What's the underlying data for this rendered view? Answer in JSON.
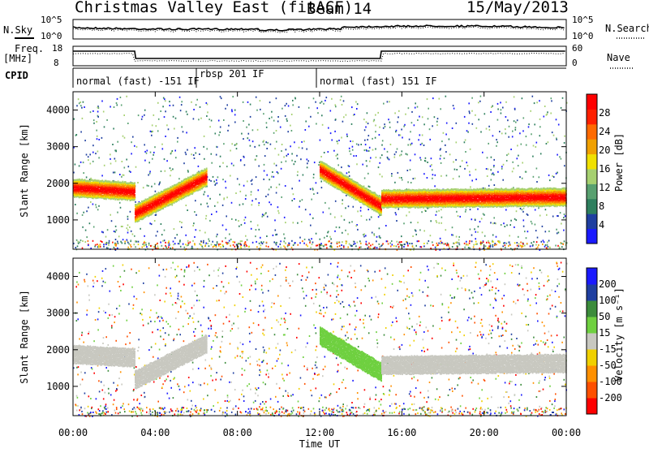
{
  "header": {
    "title": "Christmas Valley East (fitACF)",
    "beam": "Beam 14",
    "date": "15/May/2013"
  },
  "sky_panel": {
    "left_label": "N.Sky",
    "right_label": "N.Search",
    "left_ticks": [
      "10^5",
      "10^0"
    ],
    "right_ticks": [
      "10^5",
      "10^0"
    ]
  },
  "freq_panel": {
    "left_label_1": "Freq.",
    "left_label_2": "[MHz]",
    "left_ticks": [
      "18",
      "8"
    ],
    "right_label": "Nave",
    "right_ticks": [
      "60",
      "0"
    ]
  },
  "cpid": {
    "label": "CPID",
    "modes": [
      {
        "text": "normal (fast) -151 IF",
        "start_hour": 0
      },
      {
        "text": "rbsp 201 IF",
        "start_hour": 6
      },
      {
        "text": "normal (fast) 151 IF",
        "start_hour": 12
      }
    ]
  },
  "power_panel": {
    "ylabel": "Slant Range [km]",
    "yticks": [
      "1000",
      "2000",
      "3000",
      "4000"
    ],
    "colorbar_label": "Power [dB]",
    "colorbar_ticks": [
      "4",
      "8",
      "12",
      "16",
      "20",
      "24",
      "28"
    ],
    "colors": [
      "#1a1aff",
      "#1f3fa0",
      "#2e7f5e",
      "#58a070",
      "#a6d070",
      "#f0e000",
      "#f0a000",
      "#ff6a00",
      "#ff2000",
      "#ff0000"
    ]
  },
  "velocity_panel": {
    "ylabel": "Slant Range [km]",
    "yticks": [
      "1000",
      "2000",
      "3000",
      "4000"
    ],
    "colorbar_label": "Velocity [m s⁻¹]",
    "colorbar_ticks": [
      "200",
      "100",
      "50",
      "15",
      "-15",
      "-50",
      "-100",
      "-200"
    ],
    "colors": [
      "#1a1aff",
      "#1f3fa0",
      "#3c8c3c",
      "#6fd040",
      "#c8c8c0",
      "#f0d000",
      "#ff9000",
      "#ff5000",
      "#ff0000"
    ]
  },
  "x_axis": {
    "label": "Time UT",
    "ticks": [
      "00:00",
      "04:00",
      "08:00",
      "12:00",
      "16:00",
      "20:00",
      "00:00"
    ]
  },
  "chart_data": [
    {
      "type": "heatmap",
      "title": "Christmas Valley East (fitACF) Beam 14 15/May/2013",
      "xlabel": "Time UT",
      "ylabel": "Slant Range [km]",
      "xlim": [
        0,
        24
      ],
      "ylim": [
        200,
        4500
      ],
      "quantity": "Power [dB]",
      "colorbar_range": [
        0,
        32
      ],
      "features": [
        {
          "start": 0,
          "end": 3,
          "range_start": 1900,
          "range_end": 1800,
          "power": 28,
          "note": "strong band"
        },
        {
          "start": 3,
          "end": 6.5,
          "range_start": 1200,
          "range_end": 2200,
          "power": 30,
          "note": "rising band"
        },
        {
          "start": 12,
          "end": 15,
          "range_start": 2400,
          "range_end": 1400,
          "power": 26,
          "note": "descending band"
        },
        {
          "start": 15,
          "end": 24,
          "range_start": 1600,
          "range_end": 1650,
          "power": 30,
          "note": "strong band"
        }
      ]
    },
    {
      "type": "heatmap",
      "title": "",
      "xlabel": "Time UT",
      "ylabel": "Slant Range [km]",
      "xlim": [
        0,
        24
      ],
      "ylim": [
        200,
        4500
      ],
      "quantity": "Velocity [m s-1]",
      "colorbar_range": [
        -200,
        200
      ],
      "features": [
        {
          "start": 0,
          "end": 3,
          "range_start": 1900,
          "range_end": 1800,
          "velocity": 0
        },
        {
          "start": 3,
          "end": 6.5,
          "range_start": 1200,
          "range_end": 2200,
          "velocity": 0
        },
        {
          "start": 12,
          "end": 15,
          "range_start": 2400,
          "range_end": 1400,
          "velocity": 30
        },
        {
          "start": 15,
          "end": 24,
          "range_start": 1600,
          "range_end": 1650,
          "velocity": 0
        }
      ]
    }
  ]
}
